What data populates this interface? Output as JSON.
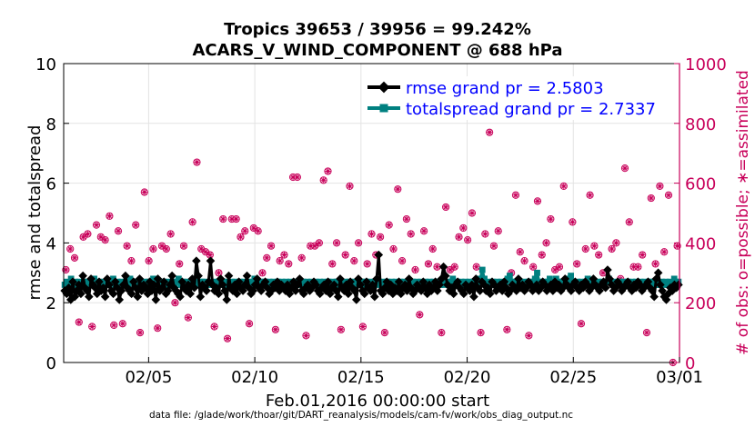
{
  "chart_data": {
    "type": "line",
    "title_line1": "Tropics 39653 / 39956 = 99.242%",
    "title_line2": "ACARS_V_WIND_COMPONENT @ 688 hPa",
    "ylabel_left": "rmse and totalspread",
    "ylabel_right": "# of obs: o=possible; ∗=assimilated",
    "xlabel": "Feb.01,2016 00:00:00 start",
    "footer": "data file: /glade/work/thoar/git/DART_reanalysis/models/cam-fv/work/obs_diag_output.nc",
    "ylim_left": [
      0,
      10
    ],
    "ylim_right": [
      0,
      1000
    ],
    "xlim_days": [
      0,
      29
    ],
    "x_tick_labels": [
      "02/05",
      "02/10",
      "02/15",
      "02/20",
      "02/25",
      "03/01"
    ],
    "x_tick_days": [
      4,
      9,
      14,
      19,
      24,
      29
    ],
    "y_left_ticks": [
      "0",
      "2",
      "4",
      "6",
      "8",
      "10"
    ],
    "y_right_ticks": [
      "0",
      "200",
      "400",
      "600",
      "800",
      "1000"
    ],
    "legend": [
      "rmse grand pr = 2.5803",
      "totalspread grand pr = 2.7337"
    ],
    "series": [
      {
        "name": "rmse",
        "values": [
          2.4,
          2.3,
          2.5,
          2.1,
          2.7,
          2.2,
          2.4,
          2.6,
          2.3,
          2.9,
          2.5,
          2.4,
          2.2,
          2.8,
          2.6,
          2.5,
          2.3,
          2.7,
          2.4,
          2.5,
          2.2,
          2.8,
          2.6,
          2.4,
          2.3,
          2.7,
          2.5,
          2.1,
          2.4,
          2.6,
          2.9,
          2.5,
          2.4,
          2.3,
          2.7,
          2.5,
          2.2,
          2.8,
          2.4,
          2.6,
          2.5,
          2.3,
          2.7,
          2.4,
          2.6,
          2.1,
          2.8,
          2.4,
          2.5,
          2.7,
          2.3,
          2.4,
          2.6,
          2.9,
          2.5,
          2.4,
          2.3,
          2.2,
          2.7,
          2.5,
          2.4,
          2.6,
          2.3,
          2.8,
          2.5,
          3.4,
          2.9,
          2.2,
          2.6,
          2.5,
          2.4,
          2.7,
          3.4,
          2.6,
          2.4,
          2.5,
          2.3,
          2.8,
          2.6,
          2.4,
          2.1,
          2.9,
          2.5,
          2.4,
          2.6,
          2.3,
          2.7,
          2.5,
          2.4,
          2.6,
          2.9,
          2.5,
          2.3,
          2.4,
          2.6,
          2.8,
          2.5,
          2.4,
          2.6,
          2.7,
          2.5,
          2.3,
          2.4,
          2.6,
          2.5,
          2.7,
          2.4,
          2.6,
          2.5,
          2.4,
          2.6,
          2.3,
          2.5,
          2.7,
          2.4,
          2.6,
          2.8,
          2.4,
          2.3,
          2.5,
          2.6,
          2.4,
          2.5,
          2.7,
          2.6,
          2.4,
          2.3,
          2.5,
          2.6,
          2.4,
          2.7,
          2.3,
          2.5,
          2.6,
          2.4,
          2.2,
          2.8,
          2.5,
          2.4,
          2.6,
          2.3,
          2.7,
          2.5,
          2.4,
          2.1,
          2.8,
          2.6,
          2.4,
          2.3,
          2.7,
          2.5,
          2.4,
          2.6,
          2.2,
          2.8,
          3.6,
          2.4,
          2.3,
          2.5,
          2.7,
          2.4,
          2.6,
          2.3,
          2.5,
          2.4,
          2.7,
          2.3,
          2.5,
          2.6,
          2.4,
          2.8,
          2.5,
          2.3,
          2.4,
          2.6,
          2.5,
          2.4,
          2.7,
          2.5,
          2.3,
          2.6,
          2.4,
          2.5,
          2.7,
          2.4,
          2.6,
          2.8,
          3.2,
          2.9,
          2.6,
          2.4,
          2.5,
          2.3,
          2.6,
          2.7,
          2.5,
          2.4,
          2.3,
          2.6,
          2.5,
          2.4,
          2.6,
          2.2,
          2.8,
          2.5,
          2.4,
          2.7,
          2.6,
          2.4,
          2.5,
          2.3,
          2.7,
          2.6,
          2.4,
          2.5,
          2.6,
          2.4,
          2.7,
          2.5,
          2.3,
          2.4,
          2.6,
          2.5,
          2.4,
          2.8,
          2.5,
          2.6,
          2.4,
          2.5,
          2.7,
          2.6,
          2.4,
          2.5,
          2.6,
          2.4,
          2.5,
          2.7,
          2.6,
          2.4,
          2.5,
          2.6,
          2.4,
          2.7,
          2.5,
          2.6,
          2.4,
          2.5,
          2.8,
          2.6,
          2.5,
          2.4,
          2.6,
          2.7,
          2.5,
          2.4,
          2.6,
          2.5,
          2.7,
          2.6,
          2.4,
          2.5,
          2.8,
          2.6,
          2.5,
          2.4,
          2.6,
          2.7,
          2.5,
          3.1,
          2.8,
          2.6,
          2.4,
          2.5,
          2.7,
          2.6,
          2.4,
          2.5,
          2.6,
          2.7,
          2.5,
          2.4,
          2.6,
          2.5,
          2.7,
          2.6,
          2.4,
          2.5,
          2.6,
          2.7,
          2.5,
          2.4,
          2.2,
          2.8,
          3.0,
          2.6,
          2.4,
          2.2,
          2.1,
          2.3,
          2.5,
          2.4,
          2.6,
          2.5,
          2.6
        ]
      },
      {
        "name": "totalspread",
        "values": [
          2.6,
          2.7,
          2.6,
          2.8,
          2.6,
          2.7,
          2.6,
          2.7,
          2.6,
          2.7,
          2.7,
          2.6,
          2.7,
          2.6,
          2.8,
          2.6,
          2.7,
          2.6,
          2.7,
          2.6,
          2.7,
          2.6,
          2.7,
          2.8,
          2.6,
          2.7,
          2.6,
          2.7,
          2.6,
          2.7,
          2.6,
          2.8,
          2.7,
          2.6,
          2.7,
          2.6,
          2.7,
          2.6,
          2.7,
          2.6,
          2.7,
          2.6,
          2.8,
          2.7,
          2.6,
          2.7,
          2.6,
          2.7,
          2.6,
          2.7,
          2.6,
          2.7,
          2.6,
          2.7,
          2.8,
          2.6,
          2.7,
          2.6,
          2.7,
          2.6,
          2.7,
          2.6,
          2.7,
          2.6,
          2.7,
          2.7,
          2.6,
          2.7,
          2.6,
          2.7,
          2.6,
          2.7,
          2.6,
          2.7,
          2.6,
          2.7,
          2.6,
          2.7,
          2.6,
          2.7,
          2.6,
          2.7,
          2.6,
          2.7,
          2.6,
          2.7,
          2.6,
          2.7,
          2.6,
          2.7,
          2.8,
          2.7,
          2.6,
          2.7,
          2.6,
          2.7,
          2.6,
          2.7,
          2.6,
          2.7,
          2.6,
          2.7,
          2.6,
          2.7,
          2.6,
          2.7,
          2.6,
          2.7,
          2.6,
          2.7,
          2.6,
          2.7,
          2.6,
          2.7,
          2.6,
          2.7,
          2.6,
          2.7,
          2.6,
          2.7,
          2.6,
          2.7,
          2.6,
          2.7,
          2.6,
          2.7,
          2.6,
          2.7,
          2.6,
          2.7,
          2.6,
          2.7,
          2.6,
          2.7,
          2.6,
          2.7,
          2.6,
          2.7,
          2.6,
          2.7,
          2.6,
          2.7,
          2.6,
          2.7,
          2.6,
          2.7,
          2.6,
          2.7,
          2.6,
          2.7,
          2.6,
          2.7,
          2.6,
          2.7,
          2.6,
          2.7,
          2.6,
          2.7,
          2.6,
          2.7,
          2.6,
          2.7,
          2.6,
          2.7,
          2.6,
          2.7,
          2.6,
          2.7,
          2.6,
          2.7,
          2.6,
          2.7,
          2.6,
          2.7,
          2.6,
          2.7,
          2.6,
          2.7,
          2.6,
          2.7,
          2.6,
          2.7,
          2.6,
          2.7,
          2.8,
          2.6,
          2.7,
          2.6,
          2.7,
          2.6,
          2.7,
          2.6,
          2.7,
          2.6,
          2.7,
          2.6,
          2.7,
          2.8,
          3.1,
          2.8,
          2.6,
          2.7,
          2.6,
          2.7,
          2.6,
          2.7,
          2.6,
          2.7,
          2.6,
          2.7,
          2.8,
          2.9,
          2.7,
          2.6,
          2.7,
          2.6,
          2.7,
          2.6,
          2.7,
          2.6,
          2.7,
          2.6,
          2.7,
          2.8,
          3.0,
          2.7,
          2.6,
          2.7,
          2.6,
          2.7,
          2.8,
          2.6,
          2.7,
          2.8,
          2.7,
          2.6,
          2.7,
          2.6,
          2.7,
          2.8,
          2.9,
          2.7,
          2.6,
          2.7,
          2.6,
          2.7,
          2.6,
          2.7,
          2.8,
          2.7,
          2.6,
          2.7,
          2.6,
          2.7,
          2.6,
          2.7,
          2.6,
          2.7,
          2.8,
          2.7,
          2.6,
          2.7,
          2.6,
          2.7,
          2.6,
          2.7,
          2.6,
          2.7,
          2.6,
          2.7,
          2.6,
          2.7,
          2.6,
          2.7,
          2.6,
          2.7,
          2.6,
          2.7,
          2.6,
          2.7,
          2.6,
          2.7,
          2.6,
          2.7,
          2.6,
          2.7,
          2.6,
          2.7,
          2.6,
          2.8,
          2.7,
          2.7
        ]
      }
    ],
    "obs_count": [
      310,
      380,
      350,
      135,
      420,
      430,
      120,
      460,
      420,
      410,
      490,
      125,
      440,
      130,
      390,
      340,
      460,
      100,
      570,
      340,
      380,
      115,
      390,
      380,
      430,
      200,
      330,
      390,
      150,
      470,
      670,
      380,
      370,
      360,
      120,
      300,
      480,
      80,
      480,
      480,
      420,
      440,
      130,
      450,
      440,
      300,
      350,
      390,
      110,
      340,
      360,
      330,
      620,
      620,
      350,
      90,
      390,
      390,
      400,
      610,
      640,
      330,
      400,
      110,
      360,
      590,
      340,
      400,
      120,
      330,
      430,
      360,
      420,
      100,
      460,
      380,
      580,
      340,
      480,
      430,
      310,
      160,
      440,
      330,
      380,
      320,
      100,
      520,
      310,
      320,
      420,
      450,
      410,
      500,
      320,
      100,
      430,
      770,
      390,
      440,
      250,
      110,
      300,
      560,
      370,
      340,
      90,
      320,
      540,
      360,
      400,
      480,
      310,
      320,
      590,
      260,
      470,
      330,
      130,
      380,
      560,
      390,
      360,
      300,
      270,
      380,
      400,
      280,
      650,
      470,
      320,
      320,
      360,
      100,
      550,
      330,
      590,
      370,
      560,
      0,
      390
    ]
  },
  "colors": {
    "rmse": "#000000",
    "spread": "#008080",
    "obs": "#c8005a",
    "legend_text": "#0000ff",
    "right_axis": "#c8005a"
  }
}
